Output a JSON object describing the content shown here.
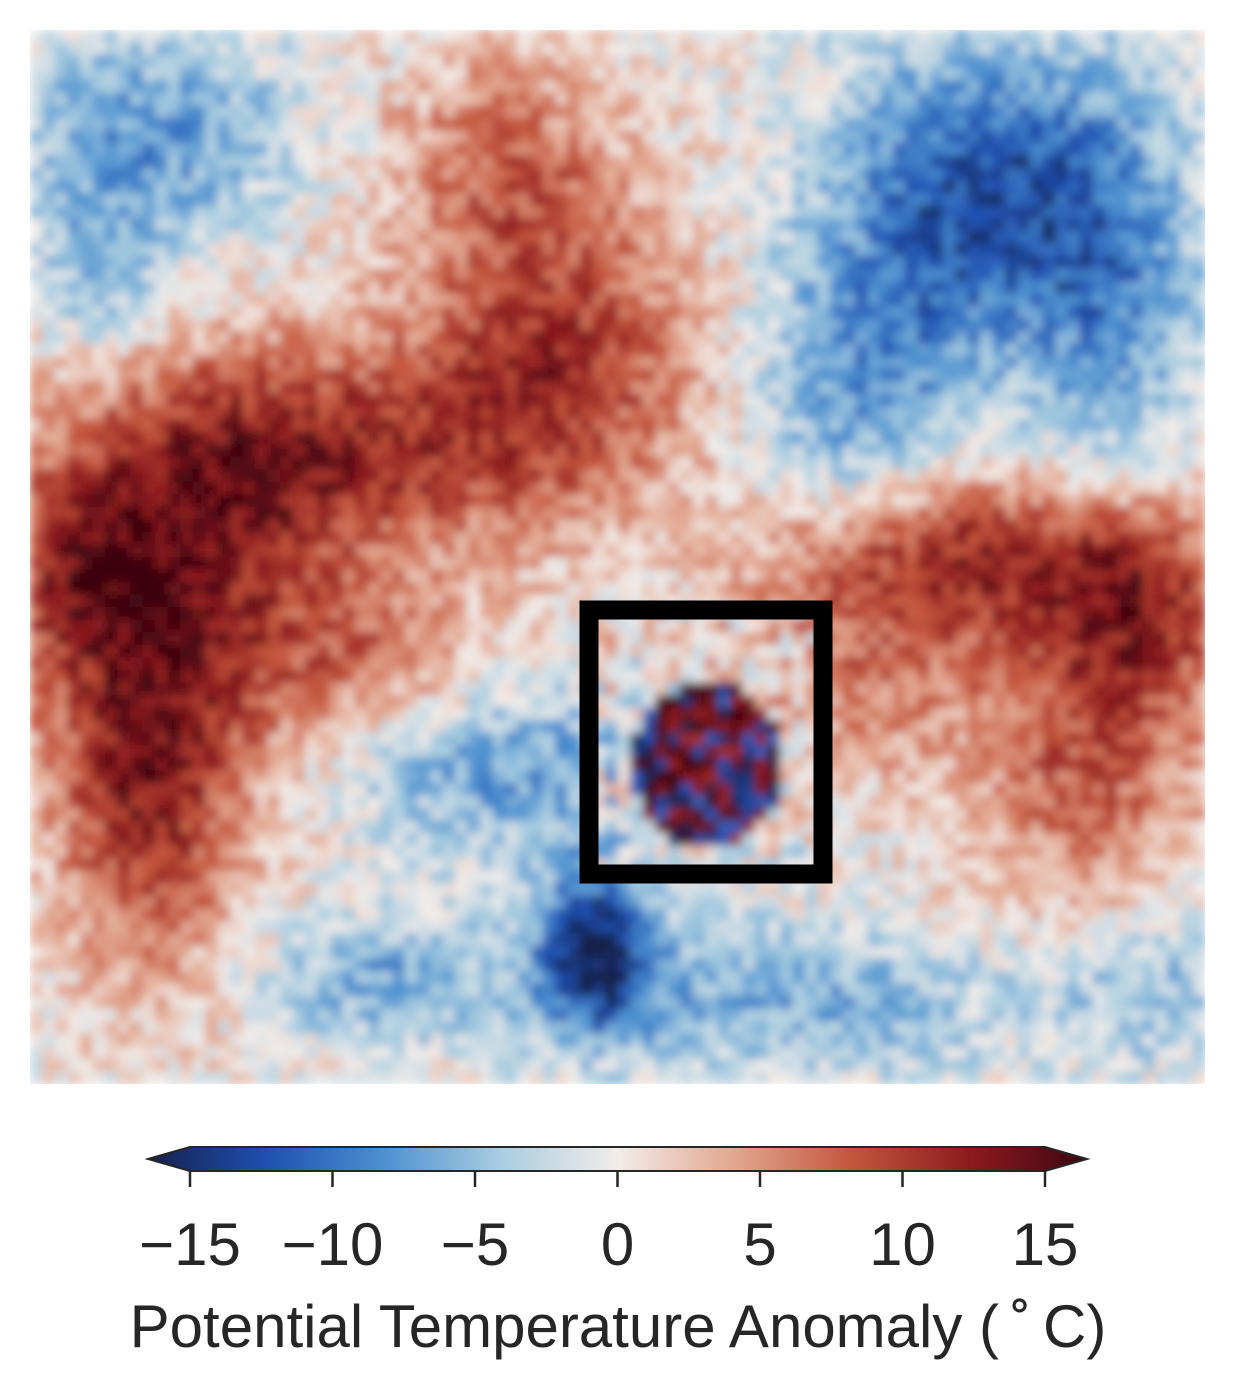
{
  "chart_data": {
    "type": "heatmap",
    "title": "",
    "xlabel": "",
    "ylabel": "",
    "colorbar": {
      "label": "Potential Temperature Anomaly ($^\\circ$C)",
      "label_display": "Potential Temperature Anomaly ( ˚ C)",
      "vmin": -15,
      "vmax": 15,
      "extend": "both",
      "orientation": "horizontal",
      "ticks": [
        -15,
        -10,
        -5,
        0,
        5,
        10,
        15
      ],
      "tick_labels": [
        "−15",
        "−10",
        "−5",
        "0",
        "5",
        "10",
        "15"
      ],
      "colormap": "diverging blue-white-red",
      "colors": [
        "#15204a",
        "#1f4fb0",
        "#4c90d0",
        "#a9cde0",
        "#f2ece9",
        "#e2a68f",
        "#c4553c",
        "#8e1a1f",
        "#3d0611"
      ]
    },
    "annotation": {
      "type": "rectangle",
      "description": "highlighted region of small-scale anomalies",
      "color": "#000000"
    },
    "field_description": "2D field of potential temperature anomaly; warm (red) band from left edge across center to right, cold (blue) regions top-right, top-left corner and bottom-center; boxed region near center contains mixed small-scale extremes"
  }
}
